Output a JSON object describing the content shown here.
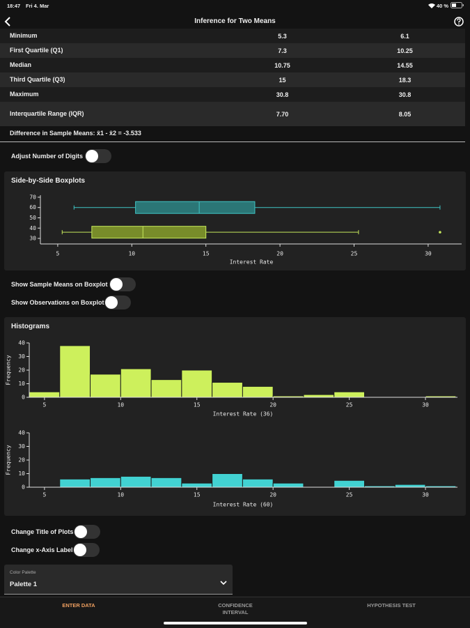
{
  "status_bar": {
    "time": "18:47",
    "date": "Fri 4. Mar",
    "battery": "40 %"
  },
  "header": {
    "title": "Inference for Two Means"
  },
  "table": {
    "rows": [
      [
        "Minimum",
        "5.3",
        "6.1"
      ],
      [
        "First Quartile (Q1)",
        "7.3",
        "10.25"
      ],
      [
        "Median",
        "10.75",
        "14.55"
      ],
      [
        "Third Quartile (Q3)",
        "15",
        "18.3"
      ],
      [
        "Maximum",
        "30.8",
        "30.8"
      ],
      [
        "Interquartile Range (IQR)",
        "7.70",
        "8.05"
      ]
    ],
    "footer": "Difference in Sample Means: x̄1 - x̄2 = -3.533"
  },
  "toggles": [
    {
      "label": "Adjust Number of Digits",
      "on": false
    },
    {
      "label": "Show Sample Means on Boxplot",
      "on": false
    },
    {
      "label": "Show Observations on Boxplot",
      "on": false
    },
    {
      "label": "Change Title of Plots",
      "on": false
    },
    {
      "label": "Change x-Axis Label",
      "on": false
    }
  ],
  "histograms_heading": "Histograms",
  "palette": {
    "label": "Color Palette",
    "value": "Palette 1"
  },
  "tabs": [
    {
      "label": "ENTER DATA",
      "active": true
    },
    {
      "label": "CONFIDENCE INTERVAL",
      "active": false
    },
    {
      "label": "HYPOTHESIS TEST",
      "active": false
    }
  ],
  "chart_data": [
    {
      "type": "boxplot",
      "title": "Side-by-Side Boxplots",
      "xlabel": "Interest Rate",
      "xlim": [
        3.83,
        32.26
      ],
      "xticks": [
        5,
        10,
        15,
        20,
        25,
        30
      ],
      "ylim": [
        24.6,
        72
      ],
      "yticks": [
        30,
        40,
        50,
        60,
        70
      ],
      "series": [
        {
          "color": "#3fc4c4",
          "fill": "#2b7676",
          "position": 60,
          "min": 6.1,
          "q1": 10.25,
          "median": 14.55,
          "q3": 18.3,
          "max": 30.8
        },
        {
          "color": "#c6e85c",
          "fill": "#788c2a",
          "position": 36,
          "min": 5.3,
          "q1": 7.3,
          "median": 10.75,
          "q3": 15,
          "max": 25.3,
          "outliers": [
            30.8
          ]
        }
      ]
    },
    {
      "type": "histogram",
      "xlabel": "Interest Rate (36)",
      "ylabel": "Frequency",
      "color": "#cdf05c",
      "bins": [
        4,
        6,
        8,
        10,
        12,
        14,
        16,
        18,
        20,
        22,
        24,
        26,
        28,
        30,
        32
      ],
      "values": [
        4,
        38,
        17,
        21,
        13,
        20,
        11,
        8,
        1,
        2,
        4,
        0,
        0,
        1
      ],
      "xlim": [
        4,
        32.1
      ],
      "xticks": [
        5,
        10,
        15,
        20,
        25,
        30
      ],
      "ylim": [
        0,
        40
      ],
      "yticks": [
        0,
        10,
        20,
        30,
        40
      ]
    },
    {
      "type": "histogram",
      "xlabel": "Interest Rate (60)",
      "ylabel": "Frequency",
      "color": "#42d2d2",
      "bins": [
        4,
        6,
        8,
        10,
        12,
        14,
        16,
        18,
        20,
        22,
        24,
        26,
        28,
        30,
        32
      ],
      "values": [
        0,
        6,
        7,
        8,
        7,
        3,
        10,
        6,
        3,
        0,
        5,
        1,
        2,
        1
      ],
      "xlim": [
        4,
        32.1
      ],
      "xticks": [
        5,
        10,
        15,
        20,
        25,
        30
      ],
      "ylim": [
        0,
        40
      ],
      "yticks": [
        0,
        10,
        20,
        30,
        40
      ]
    }
  ]
}
